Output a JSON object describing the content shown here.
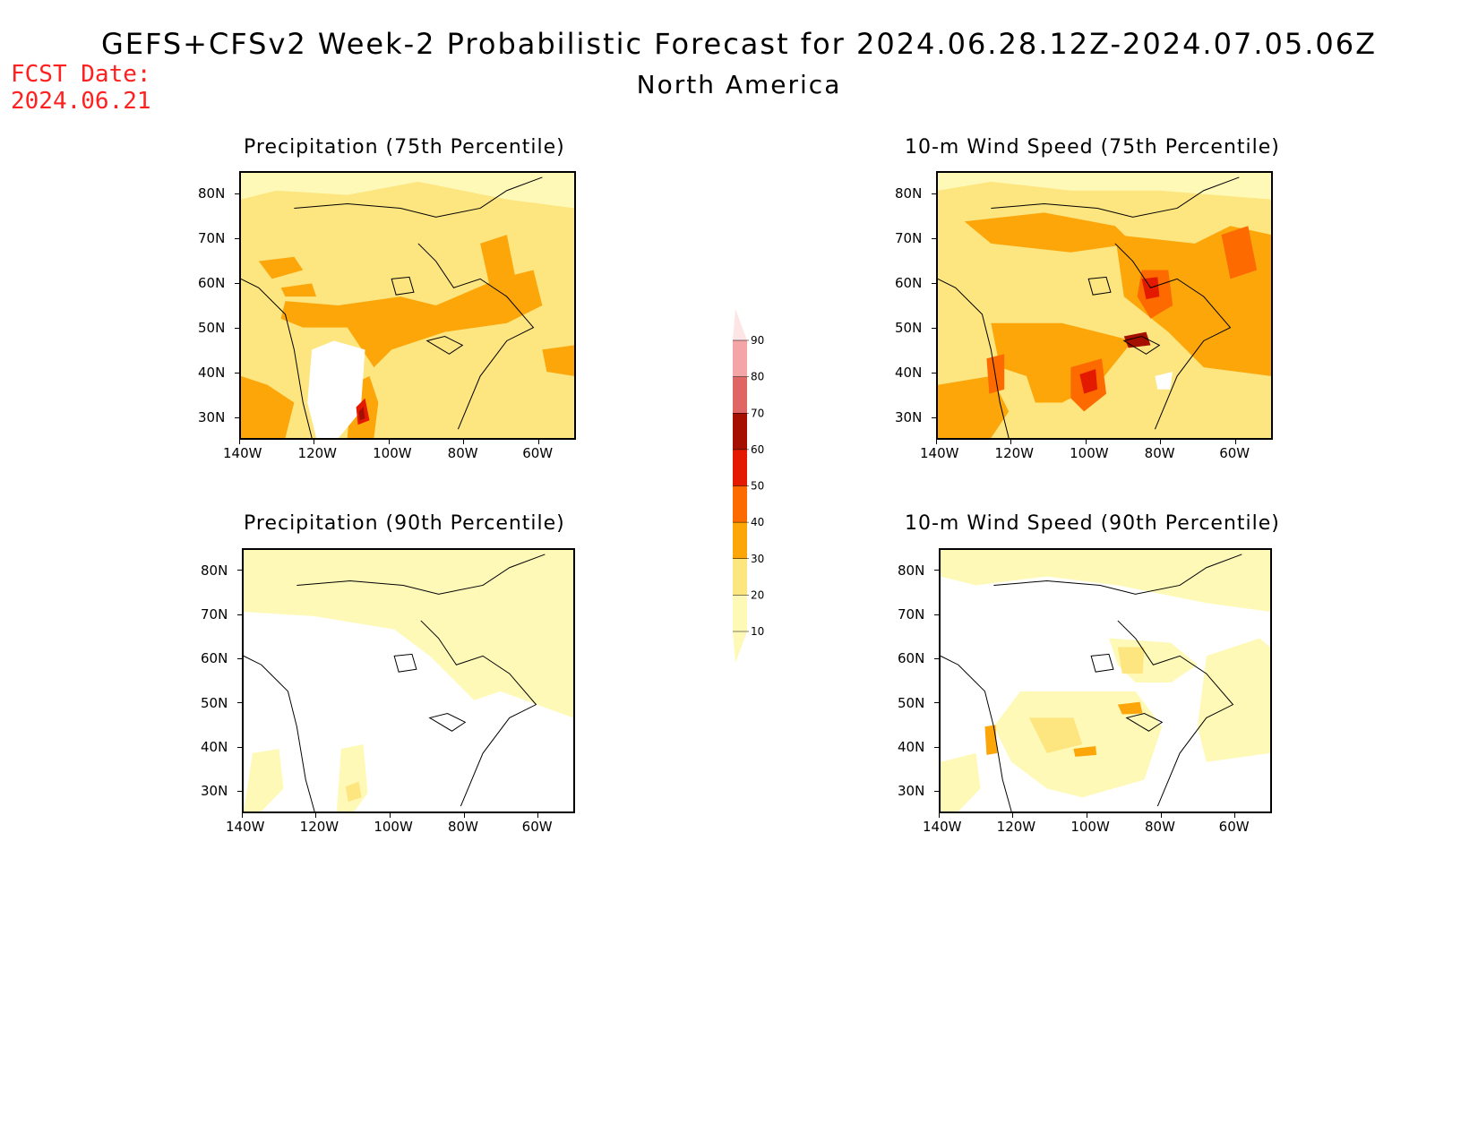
{
  "header": {
    "title": "GEFS+CFSv2 Week-2 Probabilistic Forecast for 2024.06.28.12Z-2024.07.05.06Z",
    "subtitle": "North America",
    "fcst_label": "FCST Date:",
    "fcst_date": "2024.06.21"
  },
  "panels": [
    {
      "id": "precip75",
      "title": "Precipitation (75th Percentile)"
    },
    {
      "id": "wind75",
      "title": "10-m Wind Speed (75th Percentile)"
    },
    {
      "id": "precip90",
      "title": "Precipitation (90th Percentile)"
    },
    {
      "id": "wind90",
      "title": "10-m Wind Speed (90th Percentile)"
    }
  ],
  "axes": {
    "lon_labels": [
      "140W",
      "120W",
      "100W",
      "80W",
      "60W"
    ],
    "lat_labels": [
      "80N",
      "70N",
      "60N",
      "50N",
      "40N",
      "30N"
    ]
  },
  "colorbar": {
    "labels": [
      "10",
      "20",
      "30",
      "40",
      "50",
      "60",
      "70",
      "80",
      "90"
    ],
    "colors": [
      "#fff9b8",
      "#fde580",
      "#fca60a",
      "#fd6a00",
      "#e31a00",
      "#a50f00",
      "#e06666",
      "#f4a6a6",
      "#fde5e5"
    ]
  },
  "colors": {
    "c10": "#fff9b8",
    "c20": "#fde580",
    "c30": "#fca60a",
    "c40": "#fd6a00",
    "c50": "#e31a00",
    "c60": "#a50f00",
    "fcst": "#ff2020"
  }
}
